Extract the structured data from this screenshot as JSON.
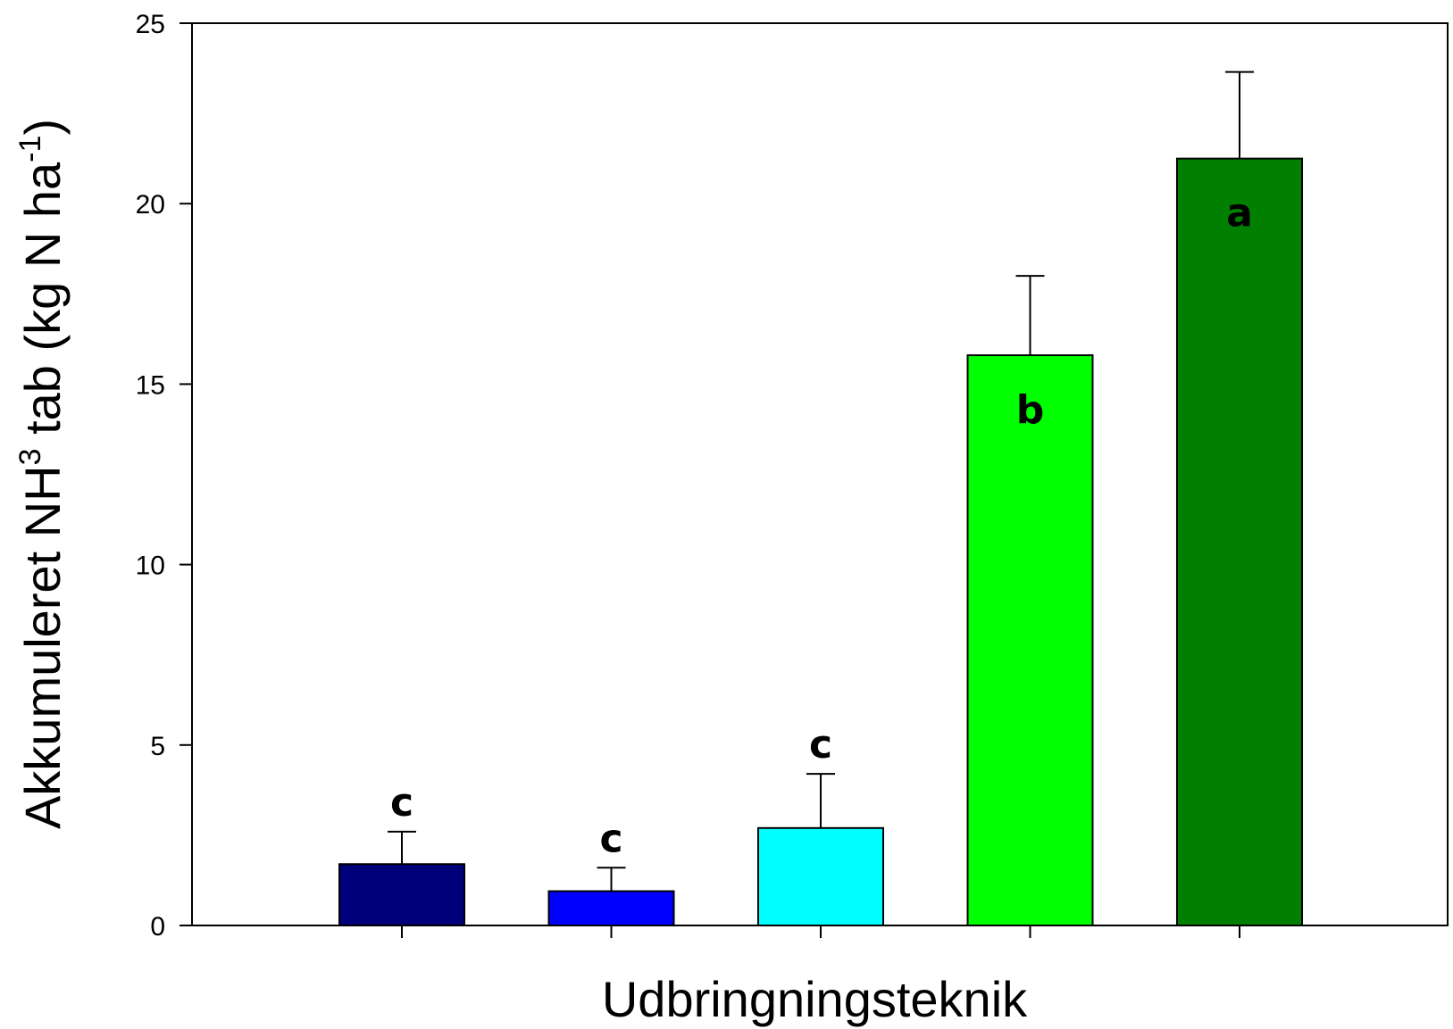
{
  "chart_data": {
    "type": "bar",
    "title": "",
    "xlabel": "Udbringningsteknik",
    "ylabel": {
      "main": "Akkumuleret NH",
      "sup1": "3",
      "mid": " tab (kg N ha",
      "sup2": "-1",
      "end": ")"
    },
    "ylim": [
      0,
      25
    ],
    "yticks": [
      0,
      5,
      10,
      15,
      20,
      25
    ],
    "grid": false,
    "legend": "none",
    "bars": [
      {
        "value": 1.7,
        "error": 0.9,
        "color": "#00007b",
        "label": "c"
      },
      {
        "value": 0.95,
        "error": 0.65,
        "color": "#0000ff",
        "label": "c"
      },
      {
        "value": 2.7,
        "error": 1.5,
        "color": "#00ffff",
        "label": "c"
      },
      {
        "value": 15.8,
        "error": 2.2,
        "color": "#00ff00",
        "label": "b"
      },
      {
        "value": 21.25,
        "error": 2.4,
        "color": "#007f00",
        "label": "a"
      }
    ]
  }
}
